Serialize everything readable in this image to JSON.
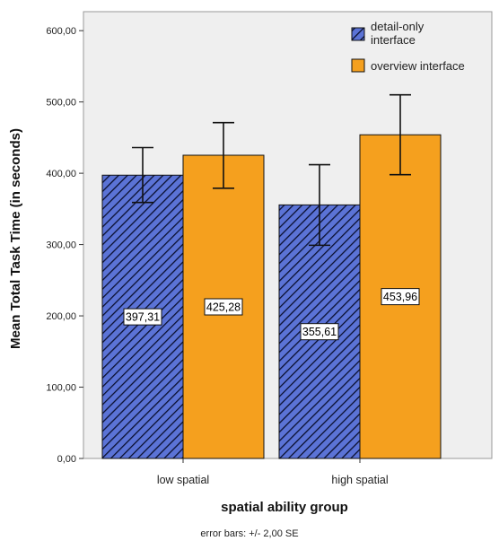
{
  "chart_data": {
    "type": "bar",
    "categories": [
      "low spatial",
      "high spatial"
    ],
    "series": [
      {
        "name": "detail-only interface",
        "legend_lines": [
          "detail-only",
          "interface"
        ],
        "values": [
          397.31,
          355.61
        ],
        "value_labels": [
          "397,31",
          "355,61"
        ],
        "error_low": [
          359,
          299
        ],
        "error_high": [
          436,
          412
        ]
      },
      {
        "name": "overview interface",
        "legend_lines": [
          "overview interface"
        ],
        "values": [
          425.28,
          453.96
        ],
        "value_labels": [
          "425,28",
          "453,96"
        ],
        "error_low": [
          379,
          398
        ],
        "error_high": [
          471,
          510
        ]
      }
    ],
    "xlabel": "spatial ability group",
    "ylabel": "Mean Total Task Time (in seconds)",
    "ylim": [
      0,
      600
    ],
    "yticks": [
      0,
      100,
      200,
      300,
      400,
      500,
      600
    ],
    "ytick_labels": [
      "0,00",
      "100,00",
      "200,00",
      "300,00",
      "400,00",
      "500,00",
      "600,00"
    ],
    "note": "error bars: +/- 2,00 SE",
    "grid": false,
    "legend_position": "top-right",
    "colors": {
      "detail_fill": "#5b73d6",
      "detail_hatch": "#0a0f2e",
      "overview_fill": "#f5a01e",
      "plot_background": "#efefef"
    }
  }
}
